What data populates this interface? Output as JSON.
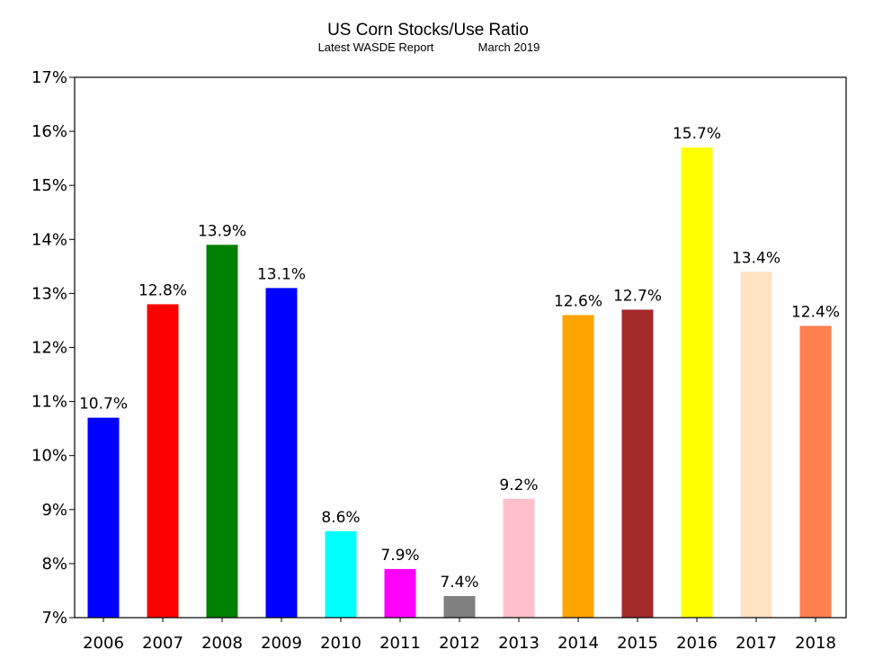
{
  "chart_data": {
    "type": "bar",
    "title": "US Corn Stocks/Use Ratio",
    "subtitle_left": "Latest WASDE Report",
    "subtitle_right": "March 2019",
    "xlabel": "",
    "ylabel": "",
    "ylim": [
      7,
      17
    ],
    "y_ticks": [
      7,
      8,
      9,
      10,
      11,
      12,
      13,
      14,
      15,
      16,
      17
    ],
    "y_tick_labels": [
      "7%",
      "8%",
      "9%",
      "10%",
      "11%",
      "12%",
      "13%",
      "14%",
      "15%",
      "16%",
      "17%"
    ],
    "grid": false,
    "categories": [
      "2006",
      "2007",
      "2008",
      "2009",
      "2010",
      "2011",
      "2012",
      "2013",
      "2014",
      "2015",
      "2016",
      "2017",
      "2018"
    ],
    "values": [
      10.7,
      12.8,
      13.9,
      13.1,
      8.6,
      7.9,
      7.4,
      9.2,
      12.6,
      12.7,
      15.7,
      13.4,
      12.4
    ],
    "value_labels": [
      "10.7%",
      "12.8%",
      "13.9%",
      "13.1%",
      "8.6%",
      "7.9%",
      "7.4%",
      "9.2%",
      "12.6%",
      "12.7%",
      "15.7%",
      "13.4%",
      "12.4%"
    ],
    "colors": [
      "#0000ff",
      "#ff0000",
      "#008000",
      "#0000ff",
      "#00ffff",
      "#ff00ff",
      "#808080",
      "#ffc0cb",
      "#ffa500",
      "#a52a2a",
      "#ffff00",
      "#ffe4c4",
      "#ff7f50"
    ]
  }
}
